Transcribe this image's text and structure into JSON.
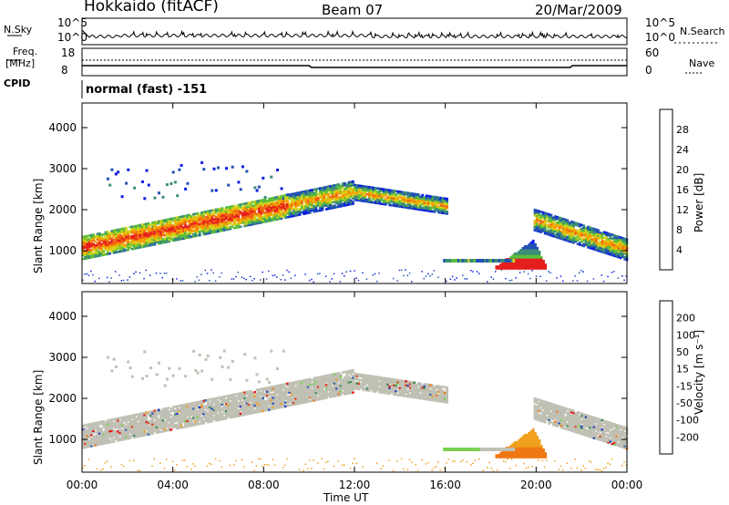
{
  "header": {
    "site": "Hokkaido (fitACF)",
    "beam": "Beam 07",
    "date": "20/Mar/2009"
  },
  "top_panel": {
    "left_label": "N.Sky",
    "left_ticks": [
      "10^5",
      "10^0"
    ],
    "right_label": "N.Search",
    "right_ticks": [
      "10^5",
      "10^0"
    ]
  },
  "freq_panel": {
    "left_label_1": "Freq.",
    "left_label_2": "[MHz]",
    "left_ticks": [
      "18",
      "8"
    ],
    "right_label": "Nave",
    "right_ticks": [
      "60",
      "0"
    ],
    "cpid_label": "CPID",
    "cpid_text": "normal (fast) -151"
  },
  "chart_data": [
    {
      "type": "heatmap",
      "name_panel": "power",
      "ylabel": "Slant Range [km]",
      "yticks": [
        "1000",
        "2000",
        "3000",
        "4000"
      ],
      "ylim": [
        200,
        4600
      ],
      "xlim": [
        0,
        24
      ],
      "colorbar_label": "Power [dB]",
      "colorbar_ticks": [
        "4",
        "8",
        "12",
        "16",
        "20",
        "24",
        "28"
      ],
      "colors": [
        "#0a1ee6",
        "#2350b4",
        "#3c8c78",
        "#5abe3c",
        "#d2d21e",
        "#f5a000",
        "#f06414",
        "#e61e1e"
      ]
    },
    {
      "type": "heatmap",
      "name_panel": "velocity",
      "ylabel": "Slant Range [km]",
      "yticks": [
        "1000",
        "2000",
        "3000",
        "4000"
      ],
      "ylim": [
        200,
        4600
      ],
      "xlim": [
        0,
        24
      ],
      "colorbar_label": "Velocity [m s⁻¹]",
      "colorbar_ticks": [
        "200",
        "100",
        "50",
        "15",
        "-15",
        "-50",
        "-100",
        "-200"
      ],
      "colors": [
        "#1e3cc8",
        "#2d64b4",
        "#3c8c5a",
        "#78d250",
        "#c0c0b4",
        "#f0a01e",
        "#f07814",
        "#e63c14",
        "#e61414"
      ]
    }
  ],
  "x_axis": {
    "ticks": [
      "00:00",
      "04:00",
      "08:00",
      "12:00",
      "16:00",
      "20:00",
      "00:00"
    ],
    "label": "Time UT"
  }
}
